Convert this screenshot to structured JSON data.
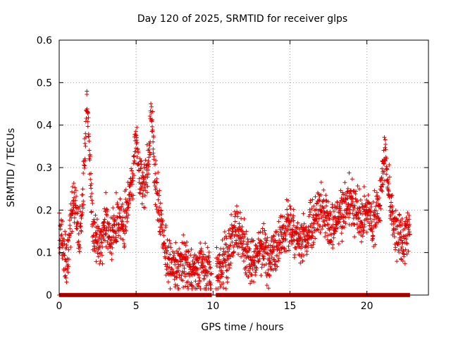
{
  "chart_data": {
    "type": "scatter",
    "title": "Day 120 of 2025, SRMTID for receiver glps",
    "xlabel": "GPS time / hours",
    "ylabel": "SRMTID / TECUs",
    "xlim": [
      0,
      24
    ],
    "ylim": [
      0,
      0.6
    ],
    "xticks": [
      0,
      5,
      10,
      15,
      20
    ],
    "xtick_labels": [
      "0",
      "5",
      "10",
      "15",
      "20"
    ],
    "yticks": [
      0,
      0.1,
      0.2,
      0.3,
      0.4,
      0.5,
      0.6
    ],
    "ytick_labels": [
      "0",
      "0.1",
      "0.2",
      "0.3",
      "0.4",
      "0.5",
      "0.6"
    ],
    "grid": true,
    "marker": "+",
    "color": "#dd0000",
    "profile_x": [
      0.0,
      0.2,
      0.5,
      0.8,
      1.0,
      1.3,
      1.6,
      1.8,
      2.0,
      2.2,
      2.5,
      2.8,
      3.0,
      3.3,
      3.6,
      3.9,
      4.2,
      4.5,
      4.8,
      5.0,
      5.2,
      5.5,
      5.8,
      6.0,
      6.2,
      6.5,
      6.8,
      7.0,
      7.3,
      7.6,
      8.0,
      8.3,
      8.6,
      9.0,
      9.3,
      9.6,
      10.0,
      10.3,
      10.6,
      11.0,
      11.3,
      11.6,
      12.0,
      12.4,
      12.8,
      13.2,
      13.6,
      14.0,
      14.4,
      14.8,
      15.2,
      15.6,
      16.0,
      16.4,
      16.8,
      17.2,
      17.6,
      18.0,
      18.4,
      18.8,
      19.2,
      19.6,
      20.0,
      20.4,
      20.8,
      21.2,
      21.6,
      22.0,
      22.4,
      22.8
    ],
    "profile_y": [
      0.15,
      0.12,
      0.09,
      0.2,
      0.22,
      0.13,
      0.25,
      0.48,
      0.3,
      0.15,
      0.13,
      0.12,
      0.18,
      0.13,
      0.15,
      0.18,
      0.16,
      0.22,
      0.28,
      0.37,
      0.3,
      0.25,
      0.31,
      0.42,
      0.3,
      0.2,
      0.12,
      0.09,
      0.07,
      0.06,
      0.08,
      0.06,
      0.05,
      0.06,
      0.07,
      0.06,
      0.04,
      0.06,
      0.07,
      0.1,
      0.13,
      0.16,
      0.11,
      0.08,
      0.09,
      0.12,
      0.07,
      0.11,
      0.14,
      0.16,
      0.15,
      0.13,
      0.14,
      0.16,
      0.19,
      0.2,
      0.16,
      0.17,
      0.2,
      0.22,
      0.2,
      0.18,
      0.2,
      0.16,
      0.22,
      0.33,
      0.18,
      0.14,
      0.13,
      0.16
    ],
    "spread": 0.035,
    "points_per_hour": 90,
    "data_start_hour": 0.0,
    "data_end_hour": 22.8,
    "gap_intervals": [
      [
        9.9,
        10.2
      ]
    ],
    "zero_value_points_per_hour": 45
  }
}
